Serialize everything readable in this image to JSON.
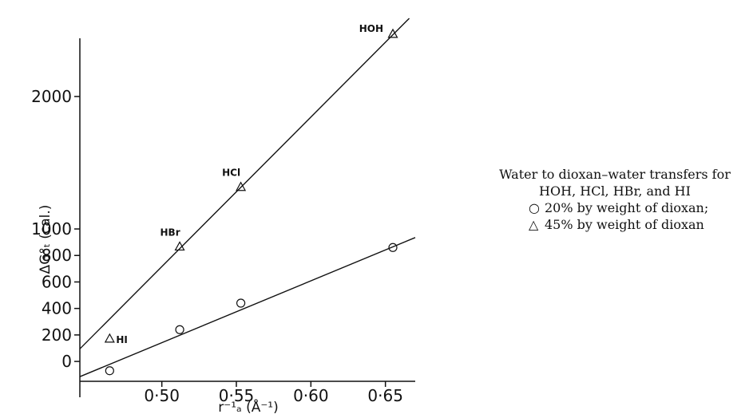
{
  "chart_data": {
    "type": "scatter",
    "xlabel": "r⁻¹ₐ (Å⁻¹)",
    "ylabel": "ΔG°ₜ (cal.)",
    "xlim": [
      0.445,
      0.67
    ],
    "ylim": [
      -150,
      2620
    ],
    "x_ticks": [
      0.5,
      0.55,
      0.6,
      0.65
    ],
    "x_tick_labels": [
      "0·50",
      "0·55",
      "0·60",
      "0·65"
    ],
    "y_ticks": [
      0,
      200,
      400,
      600,
      800,
      1000,
      2000
    ],
    "y_tick_labels": [
      "0",
      "200",
      "400",
      "600",
      "800",
      "1000",
      "2000"
    ],
    "series": [
      {
        "name": "20% by weight of dioxan",
        "marker": "circle",
        "points": [
          {
            "x": 0.465,
            "y": -70
          },
          {
            "x": 0.512,
            "y": 240
          },
          {
            "x": 0.553,
            "y": 440
          },
          {
            "x": 0.655,
            "y": 860
          }
        ],
        "fit_line": {
          "x": [
            0.445,
            0.67
          ],
          "y": [
            -115,
            935
          ]
        }
      },
      {
        "name": "45% by weight of dioxan",
        "marker": "triangle",
        "points": [
          {
            "x": 0.465,
            "y": 170,
            "label": "HI"
          },
          {
            "x": 0.512,
            "y": 865,
            "label": "HBr"
          },
          {
            "x": 0.553,
            "y": 1315,
            "label": "HCl"
          },
          {
            "x": 0.655,
            "y": 2470,
            "label": "HOH"
          }
        ],
        "fit_line": {
          "x": [
            0.445,
            0.666
          ],
          "y": [
            95,
            2590
          ]
        }
      }
    ],
    "caption": {
      "line1": "Water to dioxan–water transfers for",
      "line2": "HOH, HCl, HBr, and HI",
      "legend_circle": "20% by weight of dioxan;",
      "legend_triangle": "45% by weight of dioxan"
    }
  }
}
